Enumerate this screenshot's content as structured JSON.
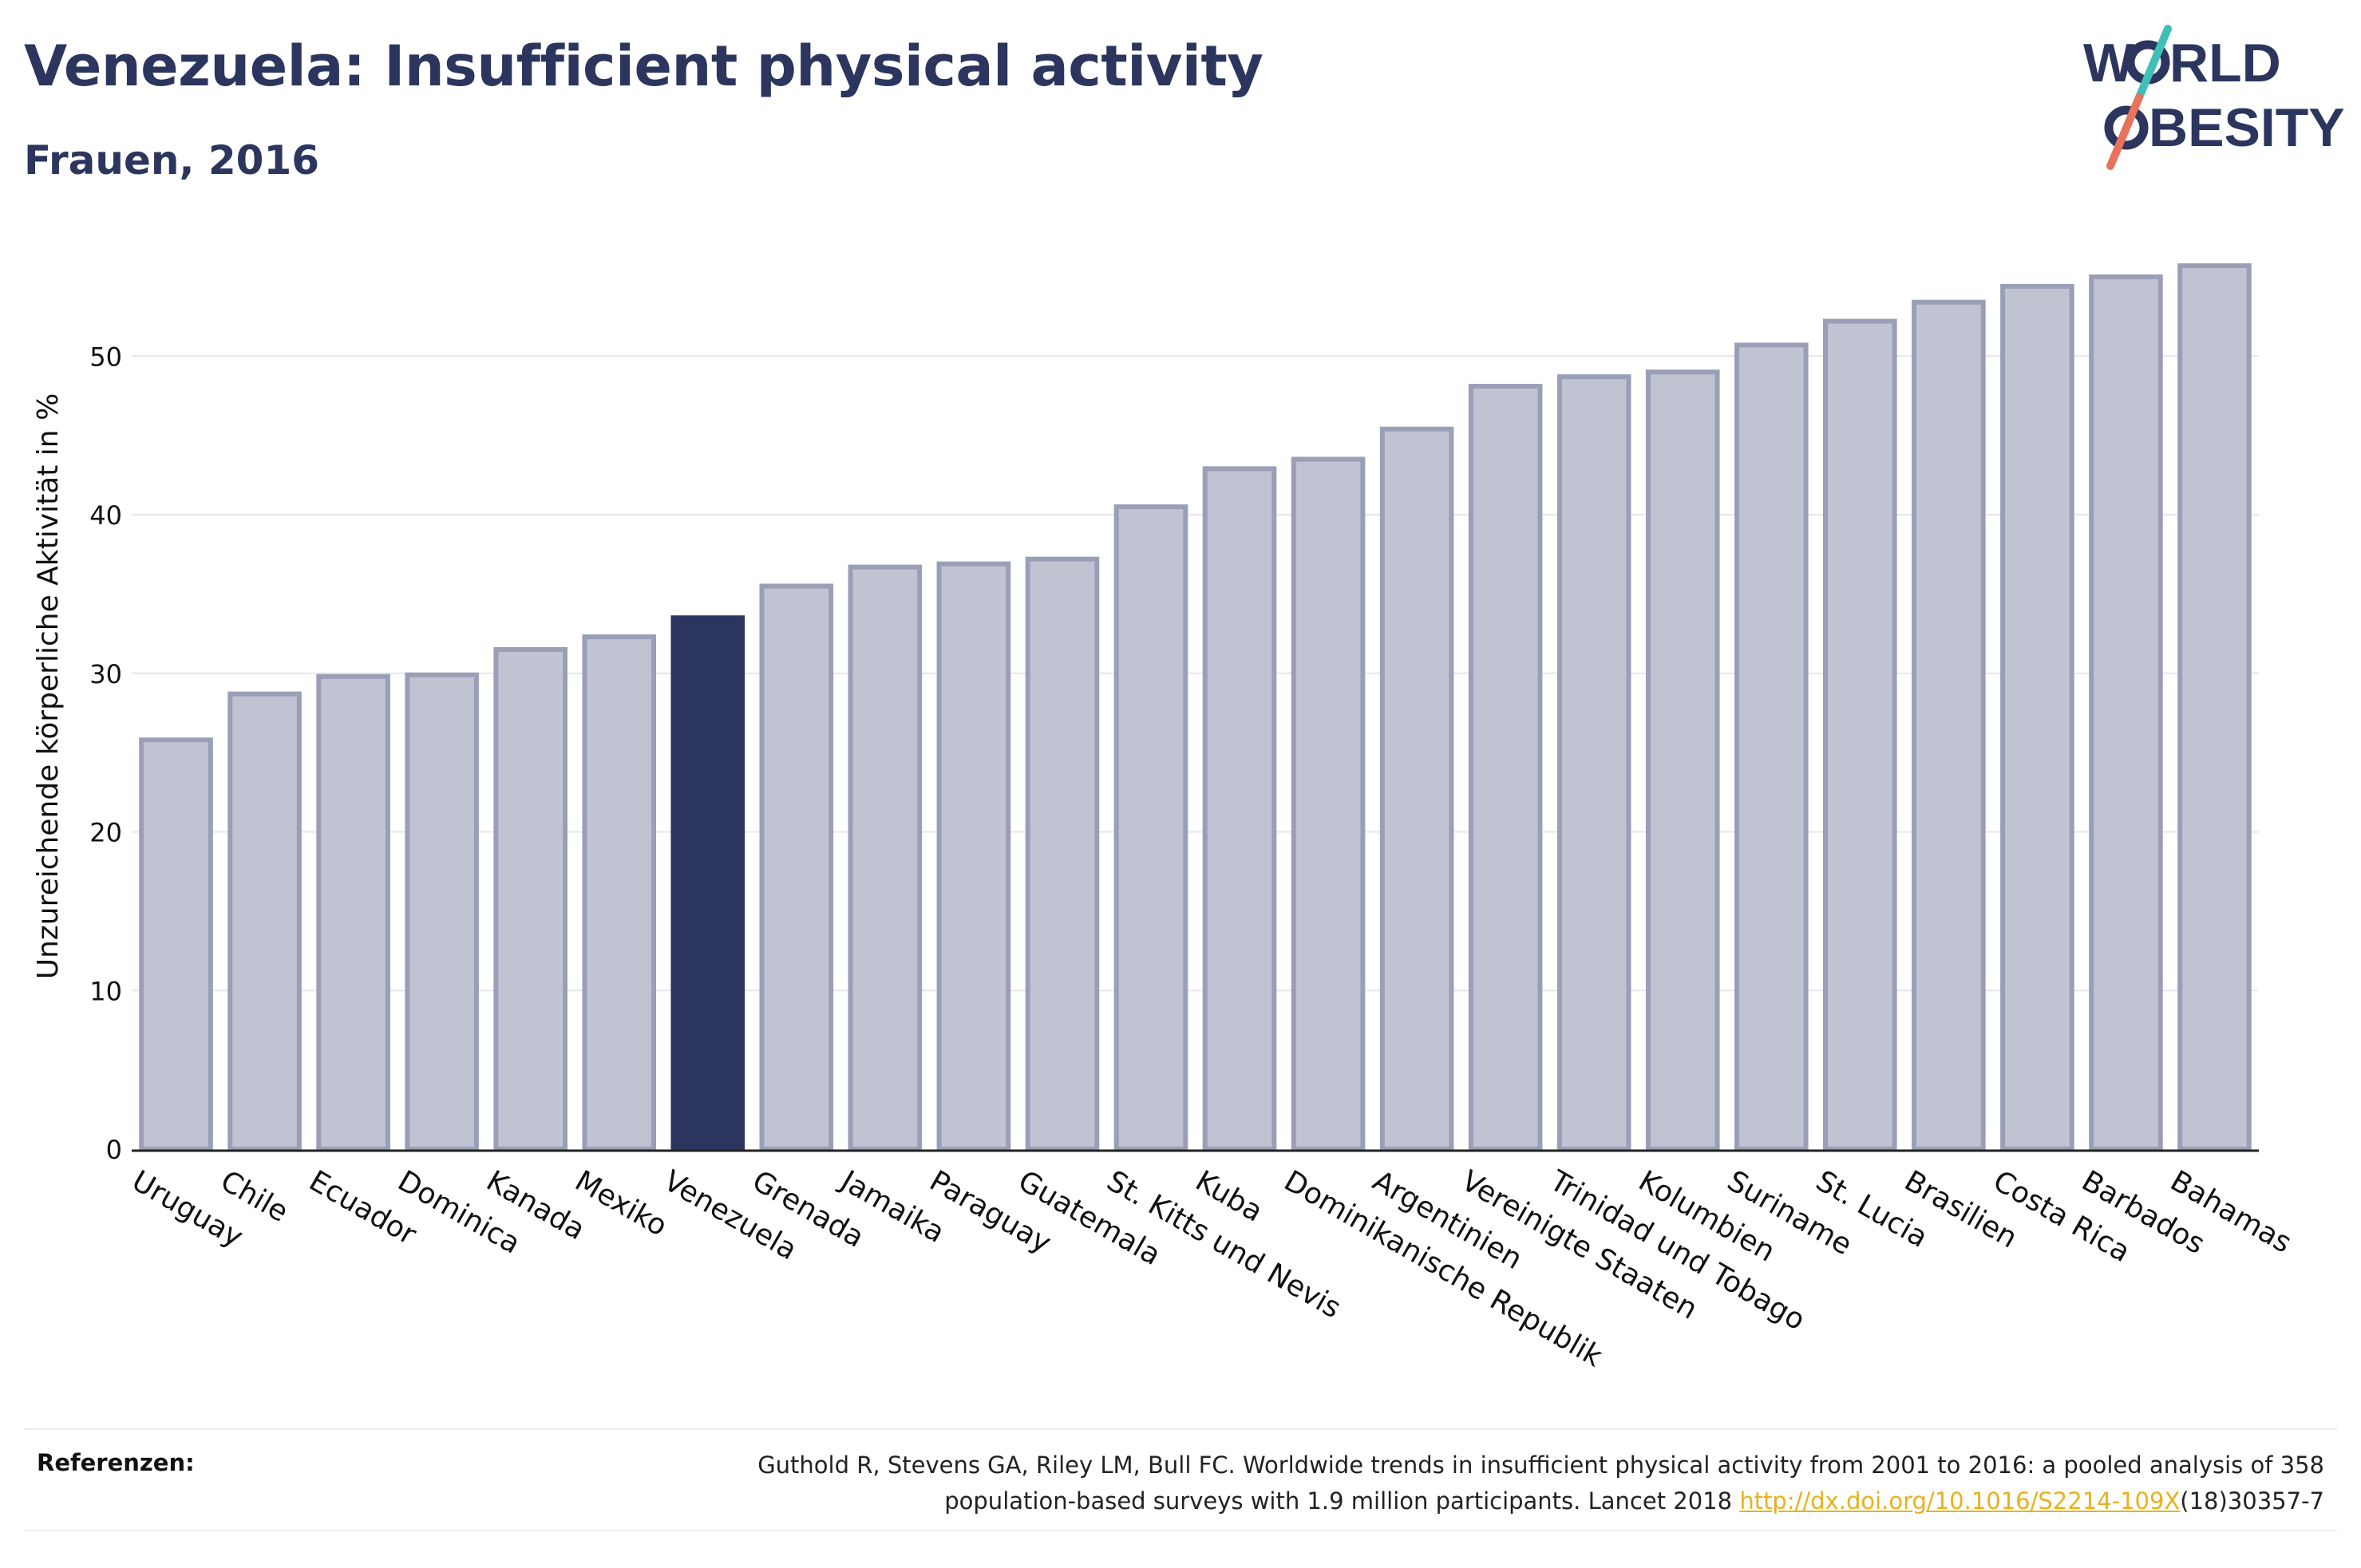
{
  "header": {
    "title": "Venezuela: Insufficient physical activity",
    "subtitle": "Frauen, 2016"
  },
  "logo": {
    "line1_left": "W",
    "line1_right": "RLD",
    "line2_right": "BESITY",
    "colors": {
      "text": "#2b355e",
      "slash_top": "#3fbfb5",
      "slash_bottom": "#e8725c"
    }
  },
  "chart_data": {
    "type": "bar",
    "title": "Venezuela: Insufficient physical activity",
    "subtitle": "Frauen, 2016",
    "xlabel": "",
    "ylabel": "Unzureichende körperliche Aktivität in %",
    "ylim": [
      0,
      58
    ],
    "yticks": [
      0,
      10,
      20,
      30,
      40,
      50
    ],
    "grid": true,
    "highlight": "Venezuela",
    "colors": {
      "bar": "#c0c3d1",
      "bar_border": "#9a9fb7",
      "highlight": "#2b355e"
    },
    "categories": [
      "Uruguay",
      "Chile",
      "Ecuador",
      "Dominica",
      "Kanada",
      "Mexiko",
      "Venezuela",
      "Grenada",
      "Jamaika",
      "Paraguay",
      "Guatemala",
      "St. Kitts und Nevis",
      "Kuba",
      "Dominikanische Republik",
      "Argentinien",
      "Vereinigte Staaten",
      "Trinidad und Tobago",
      "Kolumbien",
      "Suriname",
      "St. Lucia",
      "Brasilien",
      "Costa Rica",
      "Barbados",
      "Bahamas"
    ],
    "values": [
      25.8,
      28.7,
      29.8,
      29.9,
      31.5,
      32.3,
      33.5,
      35.5,
      36.7,
      36.9,
      37.2,
      40.5,
      42.9,
      43.5,
      45.4,
      48.1,
      48.7,
      49.0,
      50.7,
      52.2,
      53.4,
      54.4,
      55.0,
      55.7
    ]
  },
  "references": {
    "label": "Referenzen:",
    "text_line1": "Guthold R, Stevens GA, Riley LM, Bull FC. Worldwide trends in insufficient physical activity from 2001 to 2016: a pooled analysis of 358",
    "text_line2_pre": "population-based surveys with 1.9 million participants. Lancet 2018 ",
    "link": "http://dx.doi.org/10.1016/S2214-109X",
    "text_line2_post": "(18)30357-7"
  }
}
